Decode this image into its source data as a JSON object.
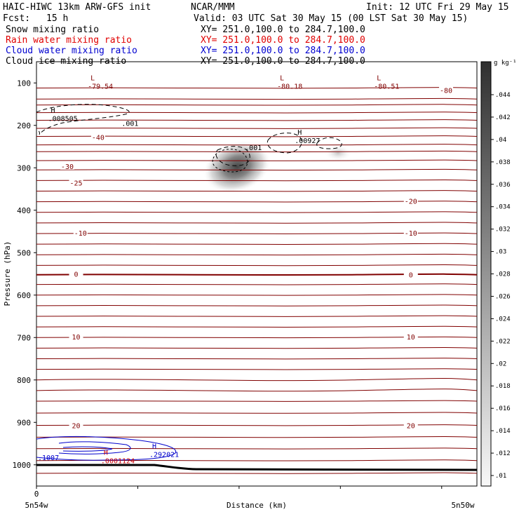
{
  "header": {
    "model": "HAIC-HIWC 13km ARW-GFS init",
    "org": "NCAR/MMM",
    "init": "Init: 12 UTC Fri 29 May 15",
    "fcst_label": "Fcst:",
    "fcst_value": "15 h",
    "valid": "Valid: 03 UTC Sat 30 May 15 (00 LST Sat 30 May 15)"
  },
  "fields": [
    {
      "name": "Snow mixing ratio",
      "xy": "XY= 251.0,100.0 to 284.7,100.0",
      "color": "#000000"
    },
    {
      "name": "Rain water mixing ratio",
      "xy": "XY= 251.0,100.0 to 284.7,100.0",
      "color": "#e00000"
    },
    {
      "name": "Cloud water mixing ratio",
      "xy": "XY= 251.0,100.0 to 284.7,100.0",
      "color": "#0000d0"
    },
    {
      "name": "Cloud ice mixing ratio",
      "xy": "XY= 251.0,100.0 to 284.7,100.0",
      "color": "#000000"
    }
  ],
  "colors": {
    "temperature": "#800000",
    "terrain": "#000000",
    "snow": "#000000",
    "rain": "#cc0000",
    "cloud_water": "#0000cc"
  },
  "chart_data": {
    "type": "contour",
    "xlabel": "Distance (km)",
    "ylabel": "Pressure (hPa)",
    "x_tick_labels": [
      "0"
    ],
    "x_end_labels": [
      "5n54w",
      "5n50w"
    ],
    "y_ticks": [
      100,
      200,
      300,
      400,
      500,
      600,
      700,
      800,
      900,
      1000
    ],
    "ylim": [
      1050,
      50
    ],
    "colorbar": {
      "unit": "g kg⁻¹",
      "ticks": [
        ".01",
        ".012",
        ".014",
        ".016",
        ".018",
        ".02",
        ".022",
        ".024",
        ".026",
        ".028",
        ".03",
        ".032",
        ".034",
        ".036",
        ".038",
        ".04",
        ".042",
        ".044"
      ]
    },
    "temperature_labels": [
      {
        "text": "-80",
        "x": 0.93,
        "p": 117
      },
      {
        "text": "-40",
        "x": 0.14,
        "p": 228
      },
      {
        "text": "-30",
        "x": 0.07,
        "p": 296
      },
      {
        "text": "-25",
        "x": 0.09,
        "p": 335
      },
      {
        "text": "-20",
        "x": 0.85,
        "p": 378
      },
      {
        "text": "-10",
        "x": 0.1,
        "p": 453
      },
      {
        "text": "-10",
        "x": 0.85,
        "p": 453
      },
      {
        "text": "0",
        "x": 0.09,
        "p": 550
      },
      {
        "text": "0",
        "x": 0.85,
        "p": 552
      },
      {
        "text": "10",
        "x": 0.09,
        "p": 698
      },
      {
        "text": "10",
        "x": 0.85,
        "p": 698
      },
      {
        "text": "20",
        "x": 0.09,
        "p": 907
      },
      {
        "text": "20",
        "x": 0.85,
        "p": 907
      }
    ],
    "extrema": [
      {
        "symbol": "L",
        "value": "-79.54",
        "x": 0.11,
        "p": 107,
        "color": "#800000"
      },
      {
        "symbol": "L",
        "value": "-80.18",
        "x": 0.54,
        "p": 107,
        "color": "#800000"
      },
      {
        "symbol": "L",
        "value": "-80.51",
        "x": 0.76,
        "p": 107,
        "color": "#800000"
      },
      {
        "symbol": "H",
        "value": ".008505",
        "x": 0.02,
        "p": 183,
        "color": "#000000"
      },
      {
        "symbol": "H",
        "value": ".00927",
        "x": 0.58,
        "p": 235,
        "color": "#000000"
      },
      {
        "symbol": "H",
        "value": ".292021",
        "x": 0.25,
        "p": 975,
        "color": "#0000cc"
      },
      {
        "symbol": "H",
        "value": ".0001124",
        "x": 0.14,
        "p": 990,
        "color": "#cc0000"
      }
    ],
    "contour_labels": [
      {
        "text": ".001",
        "x": 0.19,
        "p": 195,
        "color": "#000000"
      },
      {
        "text": ".001",
        "x": 0.47,
        "p": 252,
        "color": "#000000"
      },
      {
        "text": ".1007",
        "x": 0.0,
        "p": 982,
        "color": "#0000cc"
      }
    ]
  }
}
